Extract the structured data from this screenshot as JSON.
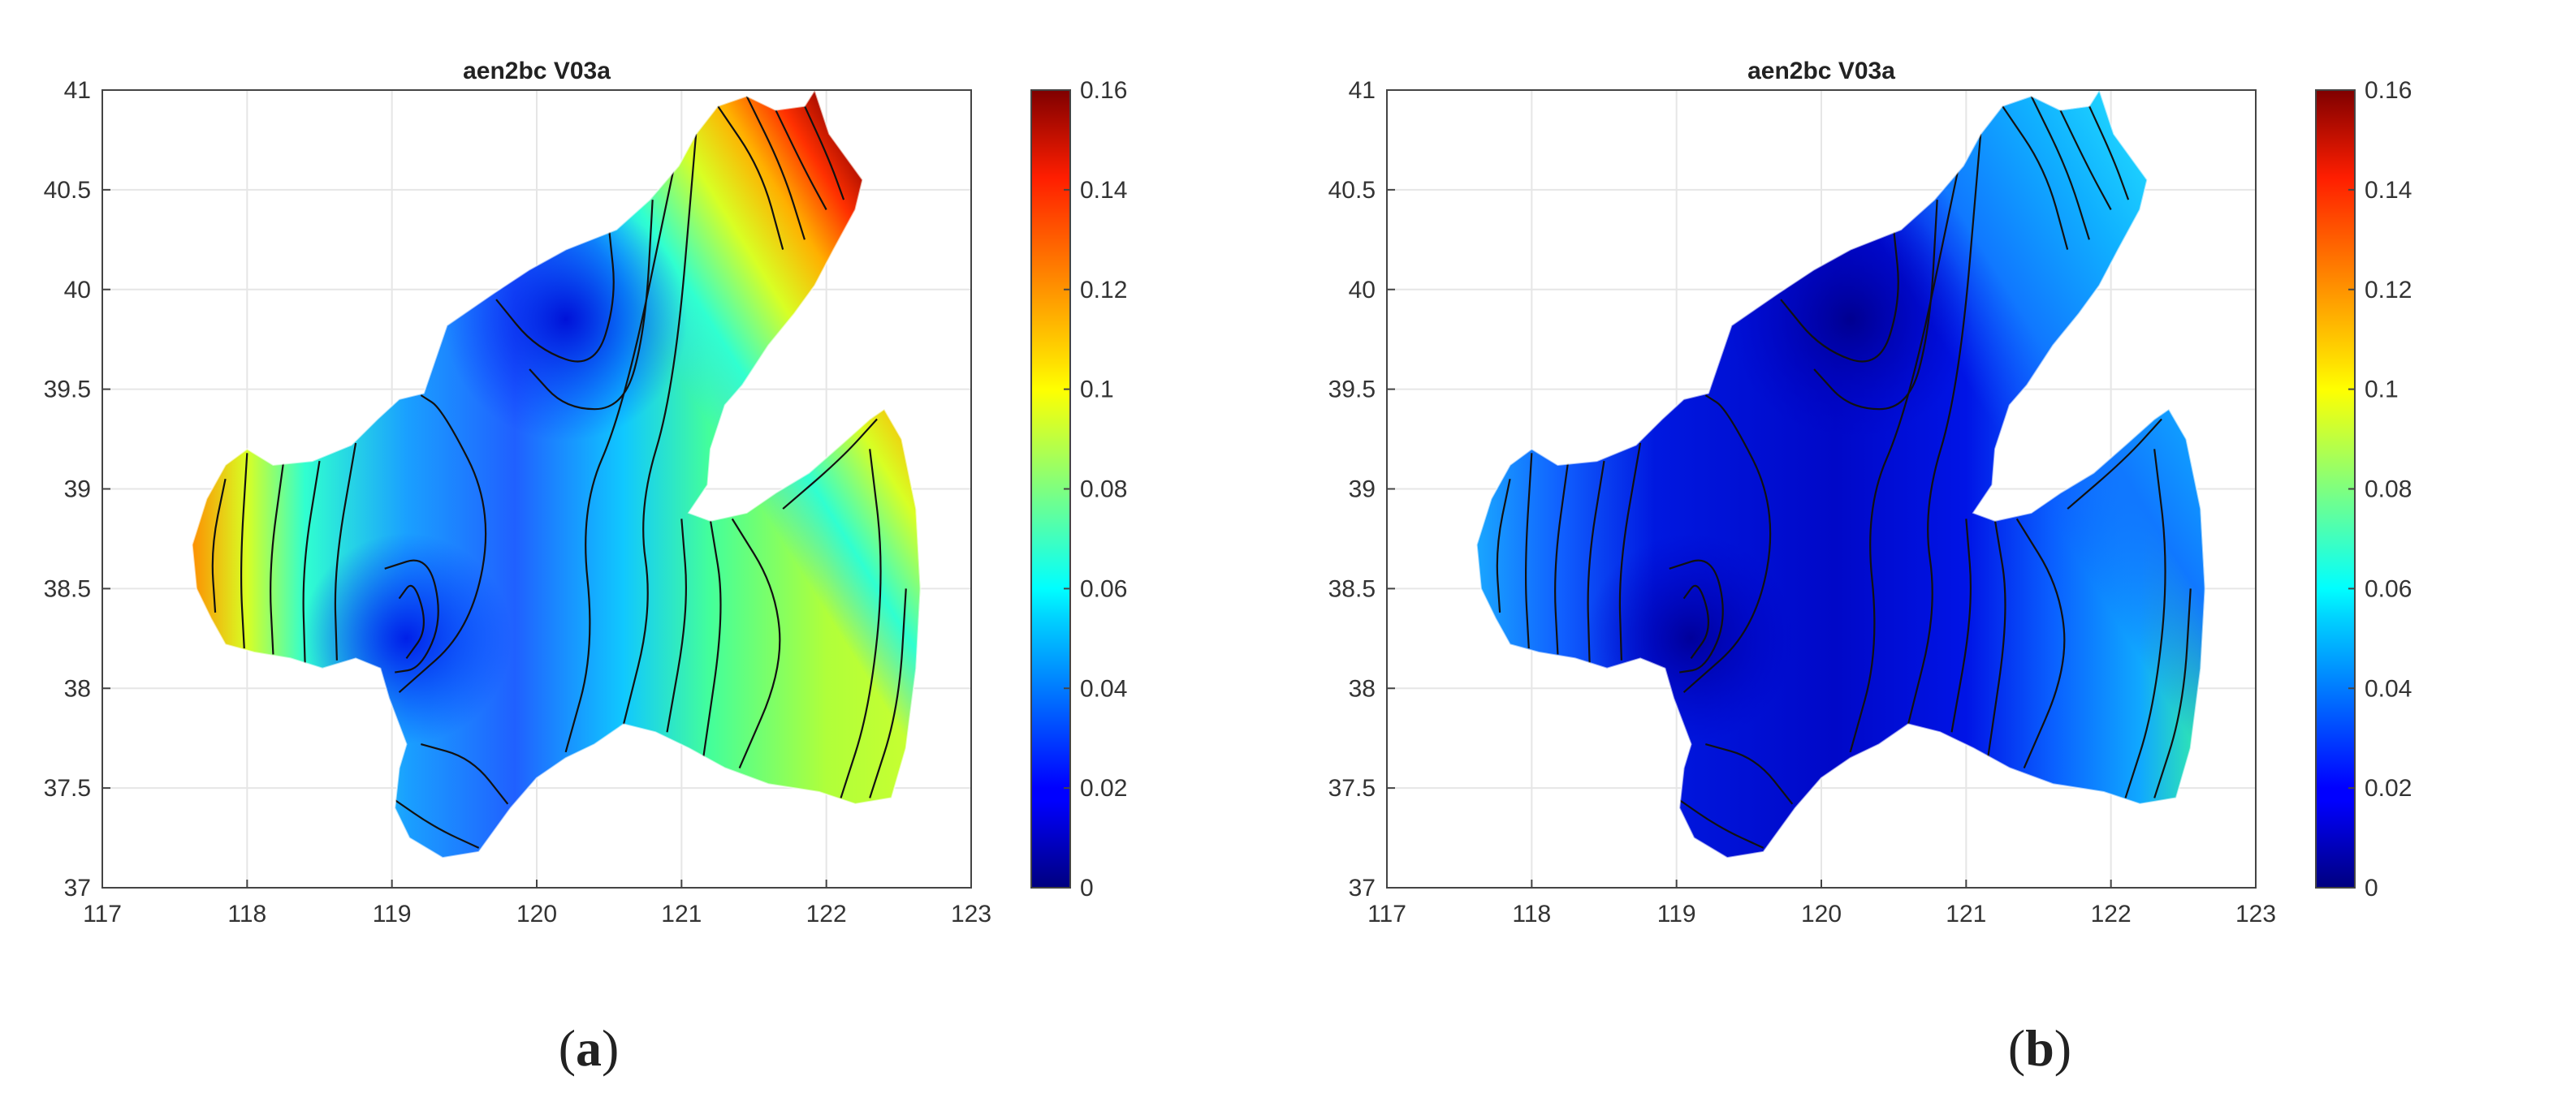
{
  "figure": {
    "panels": [
      {
        "id": "a",
        "label": "a",
        "title": "aen2bc V03a",
        "field": "high",
        "x_ticks": [
          "117",
          "118",
          "119",
          "120",
          "121",
          "122",
          "123"
        ],
        "y_ticks": [
          "37",
          "37.5",
          "38",
          "38.5",
          "39",
          "39.5",
          "40",
          "40.5",
          "41"
        ],
        "colorbar_ticks": [
          "0",
          "0.02",
          "0.04",
          "0.06",
          "0.08",
          "0.1",
          "0.12",
          "0.14",
          "0.16"
        ]
      },
      {
        "id": "b",
        "label": "b",
        "title": "aen2bc V03a",
        "field": "low",
        "x_ticks": [
          "117",
          "118",
          "119",
          "120",
          "121",
          "122",
          "123"
        ],
        "y_ticks": [
          "37",
          "37.5",
          "38",
          "38.5",
          "39",
          "39.5",
          "40",
          "40.5",
          "41"
        ],
        "colorbar_ticks": [
          "0",
          "0.02",
          "0.04",
          "0.06",
          "0.08",
          "0.1",
          "0.12",
          "0.14",
          "0.16"
        ]
      }
    ]
  },
  "map": {
    "type": "contourf",
    "x_range": [
      117,
      123
    ],
    "y_range": [
      37,
      41
    ],
    "color_range": [
      0,
      0.16
    ],
    "colormap": "jet",
    "grid": true,
    "colorbar": "right"
  }
}
